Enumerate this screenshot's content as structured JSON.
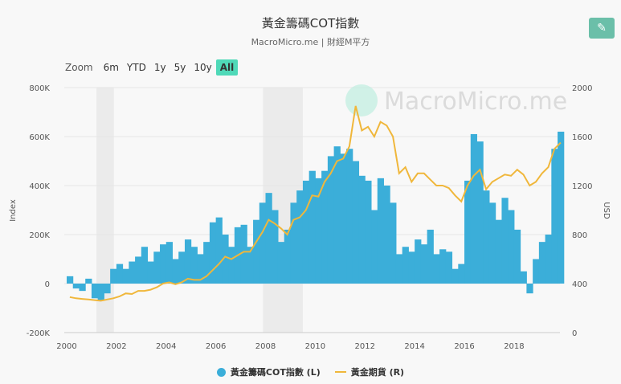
{
  "title": "黃金籌碼COT指數",
  "subtitle": "MacroMicro.me | 財經M平方",
  "watermark": "MacroMicro.me",
  "zoom": {
    "label": "Zoom",
    "options": [
      "6m",
      "YTD",
      "1y",
      "5y",
      "10y",
      "All"
    ],
    "active": "All"
  },
  "colors": {
    "cot": "#3baed9",
    "gold": "#f0b73b",
    "recession": "#ebebeb",
    "accent": "#4fd9b8"
  },
  "chart_data": {
    "type": "bar+line",
    "x_start": 2000,
    "x_step": 0.25,
    "xticks": [
      "2000",
      "2002",
      "2004",
      "2006",
      "2008",
      "2010",
      "2012",
      "2014",
      "2016",
      "2018"
    ],
    "ylabel_left": "Index",
    "ylabel_right": "USD",
    "ylim_left": [
      -200000,
      800000
    ],
    "ylim_right": [
      0,
      2000
    ],
    "yticks_left": [
      "-200K",
      "0",
      "200K",
      "400K",
      "600K",
      "800K"
    ],
    "yticks_right": [
      "0",
      "400",
      "800",
      "1200",
      "1600",
      "2000"
    ],
    "recessions": [
      [
        2001.2,
        2001.9
      ],
      [
        2007.9,
        2009.5
      ]
    ],
    "grid": true,
    "legend_position": "bottom",
    "series": [
      {
        "name": "黃金籌碼COT指數 (L)",
        "type": "bar",
        "axis": "left",
        "values": [
          30000,
          -20000,
          -30000,
          20000,
          -60000,
          -70000,
          -40000,
          60000,
          80000,
          60000,
          90000,
          110000,
          150000,
          90000,
          130000,
          160000,
          170000,
          100000,
          130000,
          180000,
          150000,
          120000,
          170000,
          250000,
          270000,
          200000,
          150000,
          230000,
          240000,
          150000,
          260000,
          330000,
          370000,
          300000,
          170000,
          220000,
          330000,
          380000,
          420000,
          460000,
          430000,
          460000,
          520000,
          560000,
          530000,
          550000,
          500000,
          440000,
          420000,
          300000,
          430000,
          400000,
          330000,
          120000,
          150000,
          130000,
          180000,
          160000,
          220000,
          120000,
          140000,
          130000,
          60000,
          80000,
          420000,
          610000,
          580000,
          380000,
          330000,
          260000,
          350000,
          300000,
          220000,
          50000,
          -40000,
          100000,
          170000,
          200000,
          550000,
          620000
        ]
      },
      {
        "name": "黃金期貨 (R)",
        "type": "line",
        "axis": "right",
        "values": [
          290,
          280,
          275,
          270,
          265,
          260,
          270,
          280,
          295,
          320,
          315,
          340,
          340,
          350,
          370,
          400,
          410,
          395,
          410,
          440,
          430,
          430,
          460,
          510,
          560,
          620,
          600,
          630,
          660,
          660,
          740,
          820,
          920,
          890,
          850,
          800,
          920,
          940,
          1000,
          1120,
          1110,
          1230,
          1300,
          1400,
          1420,
          1520,
          1850,
          1650,
          1680,
          1600,
          1720,
          1690,
          1600,
          1300,
          1350,
          1230,
          1300,
          1300,
          1250,
          1200,
          1200,
          1180,
          1120,
          1070,
          1200,
          1280,
          1330,
          1170,
          1230,
          1260,
          1290,
          1280,
          1330,
          1290,
          1200,
          1230,
          1300,
          1350,
          1500,
          1550
        ]
      }
    ]
  }
}
